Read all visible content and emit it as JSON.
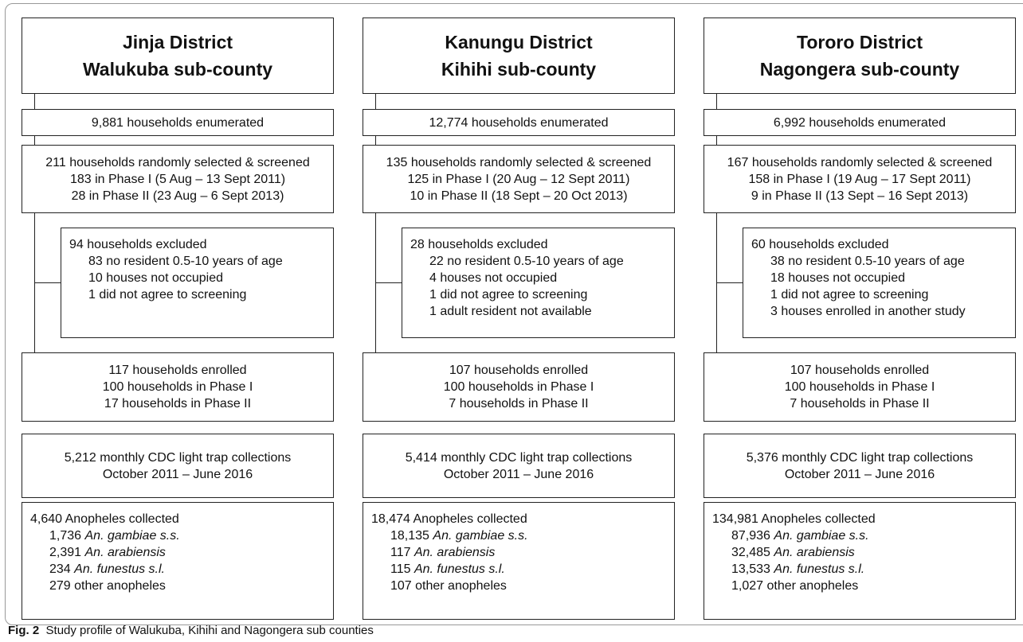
{
  "columns": [
    {
      "header": [
        "Jinja District",
        "Walukuba sub-county"
      ],
      "enumerated": "9,881 households enumerated",
      "screened": [
        "211 households randomly selected & screened",
        "183 in Phase I (5 Aug – 13 Sept 2011)",
        "28 in Phase II (23 Aug – 6 Sept 2013)"
      ],
      "excluded": {
        "title": "94 households excluded",
        "items": [
          "83 no resident 0.5-10 years of age",
          "10 houses not occupied",
          "1 did not agree to screening"
        ]
      },
      "enrolled": [
        "117 households enrolled",
        "100 households in Phase I",
        "17 households in Phase II"
      ],
      "collections": [
        "5,212 monthly CDC light trap collections",
        "October 2011 – June 2016"
      ],
      "anopheles": {
        "title": "4,640 Anopheles collected",
        "items": [
          {
            "count": "1,736",
            "species": "An. gambiae s.s."
          },
          {
            "count": "2,391",
            "species": "An. arabiensis"
          },
          {
            "count": "234",
            "species": "An. funestus s.l."
          },
          {
            "text": "279 other anopheles"
          }
        ]
      }
    },
    {
      "header": [
        "Kanungu District",
        "Kihihi sub-county"
      ],
      "enumerated": "12,774 households enumerated",
      "screened": [
        "135 households randomly selected & screened",
        "125 in Phase I (20 Aug – 12 Sept 2011)",
        "10 in Phase II (18 Sept – 20 Oct 2013)"
      ],
      "excluded": {
        "title": "28 households excluded",
        "items": [
          "22 no resident 0.5-10 years of age",
          "4 houses not occupied",
          "1 did not agree to screening",
          "1 adult resident not available"
        ]
      },
      "enrolled": [
        "107 households enrolled",
        "100 households in Phase I",
        "7 households in Phase II"
      ],
      "collections": [
        "5,414 monthly CDC light trap collections",
        "October 2011 – June 2016"
      ],
      "anopheles": {
        "title": "18,474 Anopheles collected",
        "items": [
          {
            "count": "18,135",
            "species": "An. gambiae s.s."
          },
          {
            "count": "117",
            "species": "An. arabiensis"
          },
          {
            "count": "115",
            "species": "An. funestus s.l."
          },
          {
            "text": "107 other anopheles"
          }
        ]
      }
    },
    {
      "header": [
        "Tororo District",
        "Nagongera sub-county"
      ],
      "enumerated": "6,992 households enumerated",
      "screened": [
        "167 households randomly selected & screened",
        "158 in Phase I (19 Aug – 17 Sept 2011)",
        "9 in Phase II (13 Sept – 16 Sept 2013)"
      ],
      "excluded": {
        "title": "60 households excluded",
        "items": [
          "38 no resident 0.5-10 years of age",
          "18 houses not occupied",
          "1 did not agree to screening",
          "3 houses enrolled in another study"
        ]
      },
      "enrolled": [
        "107 households enrolled",
        "100 households in Phase I",
        "7 households in Phase II"
      ],
      "collections": [
        "5,376 monthly CDC light trap collections",
        "October 2011 – June 2016"
      ],
      "anopheles": {
        "title": "134,981 Anopheles collected",
        "items": [
          {
            "count": "87,936",
            "species": "An. gambiae s.s."
          },
          {
            "count": "32,485",
            "species": "An. arabiensis"
          },
          {
            "count": "13,533",
            "species": "An. funestus s.l."
          },
          {
            "text": "1,027 other anopheles"
          }
        ]
      }
    }
  ],
  "caption": {
    "label": "Fig. 2",
    "text": "Study profile of Walukuba, Kihihi and Nagongera sub counties"
  }
}
